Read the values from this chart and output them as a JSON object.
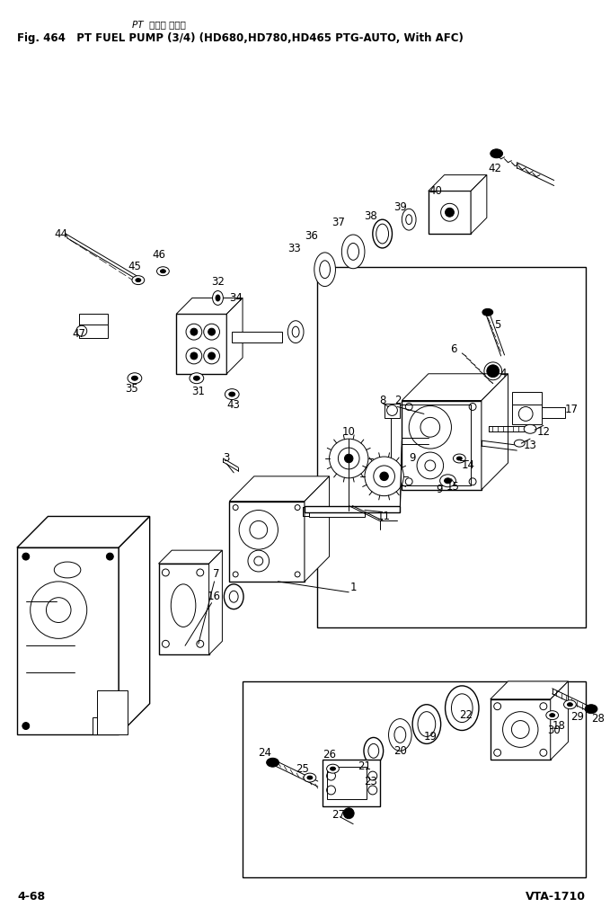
{
  "title_line1": "PT  フェル ボンプ",
  "title_line2": "Fig. 464   PT FUEL PUMP (3/4) (HD680,HD780,HD465 PTG-AUTO, With AFC)",
  "footer_left": "4-68",
  "footer_right": "VTA-1710",
  "bg_color": "#ffffff",
  "figsize": [
    6.79,
    10.19
  ],
  "dpi": 100
}
